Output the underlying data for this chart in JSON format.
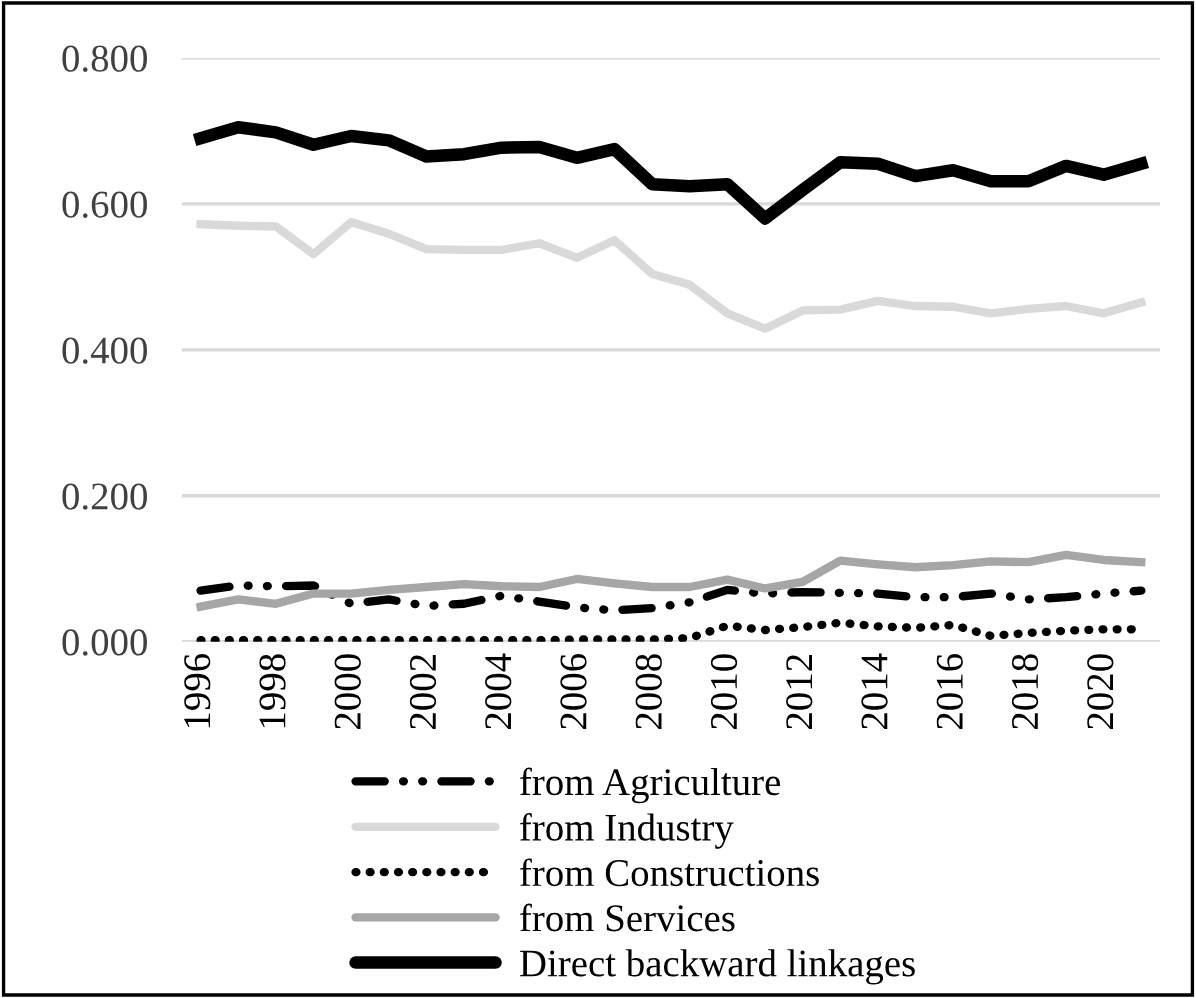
{
  "chart_data": {
    "type": "line",
    "categories": [
      "1996",
      null,
      "1998",
      null,
      "2000",
      null,
      "2002",
      null,
      "2004",
      null,
      "2006",
      null,
      "2008",
      null,
      "2010",
      null,
      "2012",
      null,
      "2014",
      null,
      "2016",
      null,
      "2018",
      null,
      "2020",
      null
    ],
    "series": [
      {
        "name": "from Agriculture",
        "color": "#000000",
        "line_style": "dashdot",
        "values": [
          0.07,
          0.077,
          0.076,
          0.077,
          0.052,
          0.058,
          0.049,
          0.052,
          0.063,
          0.055,
          0.047,
          0.043,
          0.046,
          0.054,
          0.071,
          0.066,
          0.068,
          0.067,
          0.066,
          0.061,
          0.061,
          0.066,
          0.058,
          0.061,
          0.066,
          0.07
        ]
      },
      {
        "name": "from Industry",
        "color": "#d9d9d9",
        "line_style": "solid",
        "values": [
          0.572,
          0.57,
          0.569,
          0.531,
          0.575,
          0.559,
          0.538,
          0.537,
          0.537,
          0.546,
          0.526,
          0.55,
          0.504,
          0.489,
          0.45,
          0.429,
          0.454,
          0.455,
          0.467,
          0.46,
          0.459,
          0.45,
          0.456,
          0.46,
          0.45,
          0.465
        ]
      },
      {
        "name": "from Constructions",
        "color": "#000000",
        "line_style": "dotted",
        "values": [
          0.002,
          0.002,
          0.002,
          0.002,
          0.002,
          0.002,
          0.002,
          0.002,
          0.002,
          0.002,
          0.003,
          0.003,
          0.003,
          0.005,
          0.022,
          0.016,
          0.02,
          0.026,
          0.021,
          0.019,
          0.023,
          0.008,
          0.012,
          0.015,
          0.017,
          0.017
        ]
      },
      {
        "name": "from Services",
        "color": "#a6a6a6",
        "line_style": "solid",
        "values": [
          0.048,
          0.058,
          0.052,
          0.066,
          0.066,
          0.071,
          0.075,
          0.079,
          0.076,
          0.075,
          0.086,
          0.08,
          0.075,
          0.075,
          0.085,
          0.073,
          0.082,
          0.111,
          0.106,
          0.102,
          0.105,
          0.11,
          0.109,
          0.119,
          0.112,
          0.109
        ]
      },
      {
        "name": "Direct backward linkages",
        "color": "#000000",
        "line_style": "solid",
        "values": [
          0.69,
          0.705,
          0.698,
          0.681,
          0.693,
          0.687,
          0.665,
          0.668,
          0.677,
          0.678,
          0.663,
          0.675,
          0.627,
          0.624,
          0.627,
          0.58,
          0.619,
          0.657,
          0.655,
          0.638,
          0.646,
          0.631,
          0.631,
          0.652,
          0.64,
          0.655
        ]
      }
    ],
    "ylim": [
      0,
      0.8
    ],
    "yticks": [
      {
        "value": 0,
        "label": "0.000"
      },
      {
        "value": 0.2,
        "label": "0.200"
      },
      {
        "value": 0.4,
        "label": "0.400"
      },
      {
        "value": 0.6,
        "label": "0.600"
      },
      {
        "value": 0.8,
        "label": "0.800"
      }
    ],
    "grid": "y",
    "legend": "bottom"
  }
}
